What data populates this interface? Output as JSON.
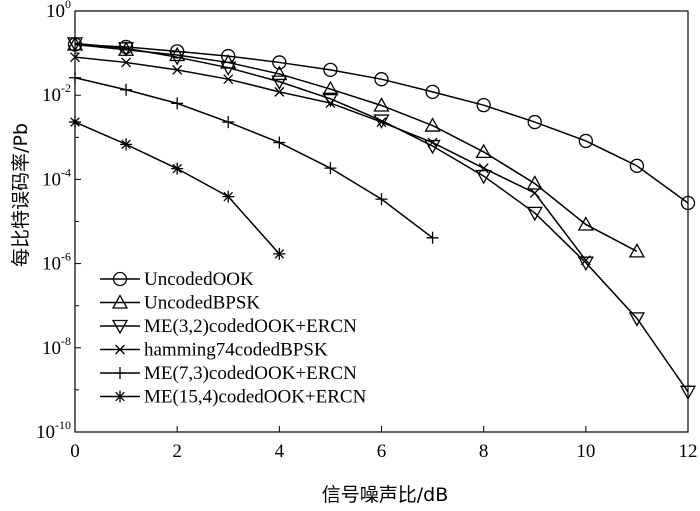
{
  "chart_data": {
    "type": "line",
    "xlabel": "信号噪声比/dB",
    "ylabel": "每比特误码率/Pb",
    "xlim": [
      0,
      12
    ],
    "ylim_log10": [
      -10,
      0
    ],
    "y_scale": "log",
    "x_ticks": [
      "0",
      "2",
      "4",
      "6",
      "8",
      "10",
      "12"
    ],
    "y_ticks": [
      {
        "base": "10",
        "exp": "0",
        "value": 1
      },
      {
        "base": "10",
        "exp": "-2",
        "value": 0.01
      },
      {
        "base": "10",
        "exp": "-4",
        "value": 0.0001
      },
      {
        "base": "10",
        "exp": "-6",
        "value": 1e-06
      },
      {
        "base": "10",
        "exp": "-8",
        "value": 1e-08
      },
      {
        "base": "10",
        "exp": "-10",
        "value": 1e-10
      }
    ],
    "grid": false,
    "legend_position": "bottom-left",
    "series": [
      {
        "name": "UncodedOOK",
        "marker": "circle",
        "x": [
          0,
          1,
          2,
          3,
          4,
          5,
          6,
          7,
          8,
          9,
          10,
          11,
          12
        ],
        "y": [
          0.16,
          0.14,
          0.11,
          0.085,
          0.06,
          0.04,
          0.024,
          0.012,
          0.0058,
          0.0023,
          0.00082,
          0.00021,
          2.75e-05
        ]
      },
      {
        "name": "UncodedBPSK",
        "marker": "triangle-up",
        "x": [
          0,
          1,
          2,
          3,
          4,
          5,
          6,
          7,
          8,
          9,
          10,
          11
        ],
        "y": [
          0.16,
          0.12,
          0.09,
          0.06,
          0.032,
          0.014,
          0.0057,
          0.0019,
          0.00045,
          8e-05,
          8.5e-06,
          1.95e-06
        ]
      },
      {
        "name": "ME(3,2)codedOOK+ERCN",
        "marker": "triangle-down",
        "x": [
          0,
          1,
          2,
          3,
          4,
          5,
          6,
          7,
          8,
          9,
          10,
          11,
          12
        ],
        "y": [
          0.17,
          0.13,
          0.08,
          0.045,
          0.021,
          0.0082,
          0.0025,
          0.00062,
          0.00012,
          1.6e-05,
          1.05e-06,
          5e-08,
          9e-10
        ]
      },
      {
        "name": "hamming74codedBPSK",
        "marker": "x",
        "x": [
          0,
          1,
          2,
          3,
          4,
          5,
          6,
          7,
          8,
          9,
          10
        ],
        "y": [
          0.08,
          0.06,
          0.04,
          0.024,
          0.012,
          0.0065,
          0.0023,
          0.00075,
          0.000185,
          4.75e-05,
          1.2e-06
        ]
      },
      {
        "name": "ME(7,3)codedOOK+ERCN",
        "marker": "plus",
        "x": [
          0,
          1,
          2,
          3,
          4,
          5,
          6,
          7
        ],
        "y": [
          0.026,
          0.0135,
          0.0064,
          0.0023,
          0.00075,
          0.000185,
          3.4e-05,
          4.1e-06
        ]
      },
      {
        "name": "ME(15,4)codedOOK+ERCN",
        "marker": "star",
        "x": [
          0,
          1,
          2,
          3,
          4
        ],
        "y": [
          0.0023,
          0.00068,
          0.00018,
          3.9e-05,
          1.7e-06
        ]
      }
    ]
  }
}
